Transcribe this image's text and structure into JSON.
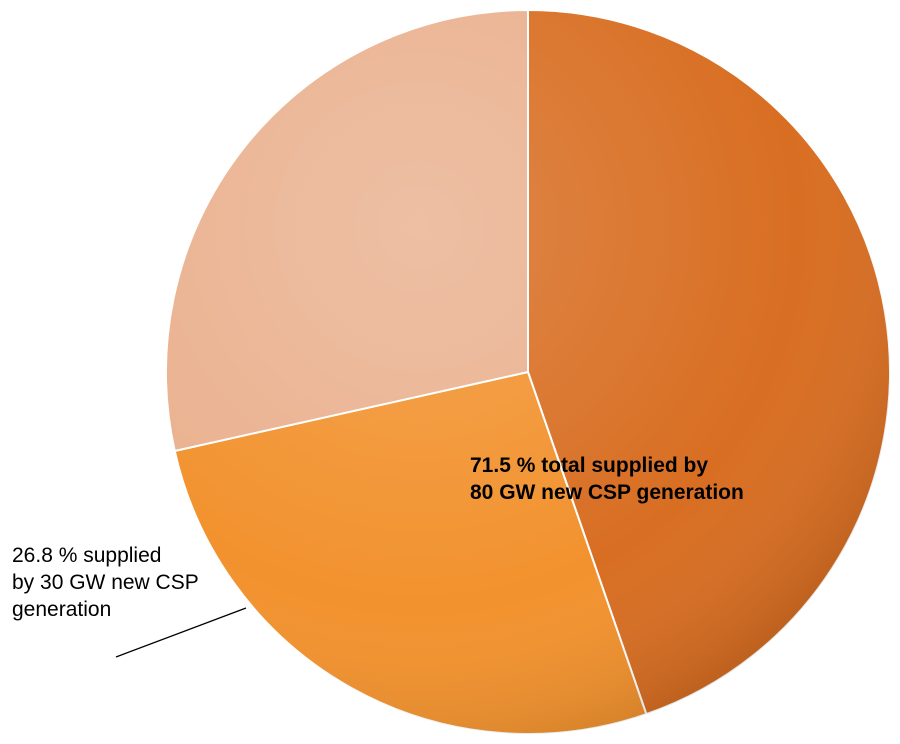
{
  "chart_data": {
    "type": "pie",
    "title": "",
    "start_angle_deg": 0,
    "direction": "clockwise",
    "slices": [
      {
        "name": "",
        "value": 44.7,
        "color": "#d86e22"
      },
      {
        "name": "",
        "value": 26.8,
        "color": "#f2922e"
      },
      {
        "name": "",
        "value": 28.5,
        "color": "#eab18f"
      }
    ],
    "annotations": [
      {
        "line1": "71.5 % total supplied by",
        "line2": "80 GW new CSP generation"
      },
      {
        "line1": "26.8 % supplied",
        "line2": "by 30 GW new CSP",
        "line3": "generation"
      }
    ]
  }
}
